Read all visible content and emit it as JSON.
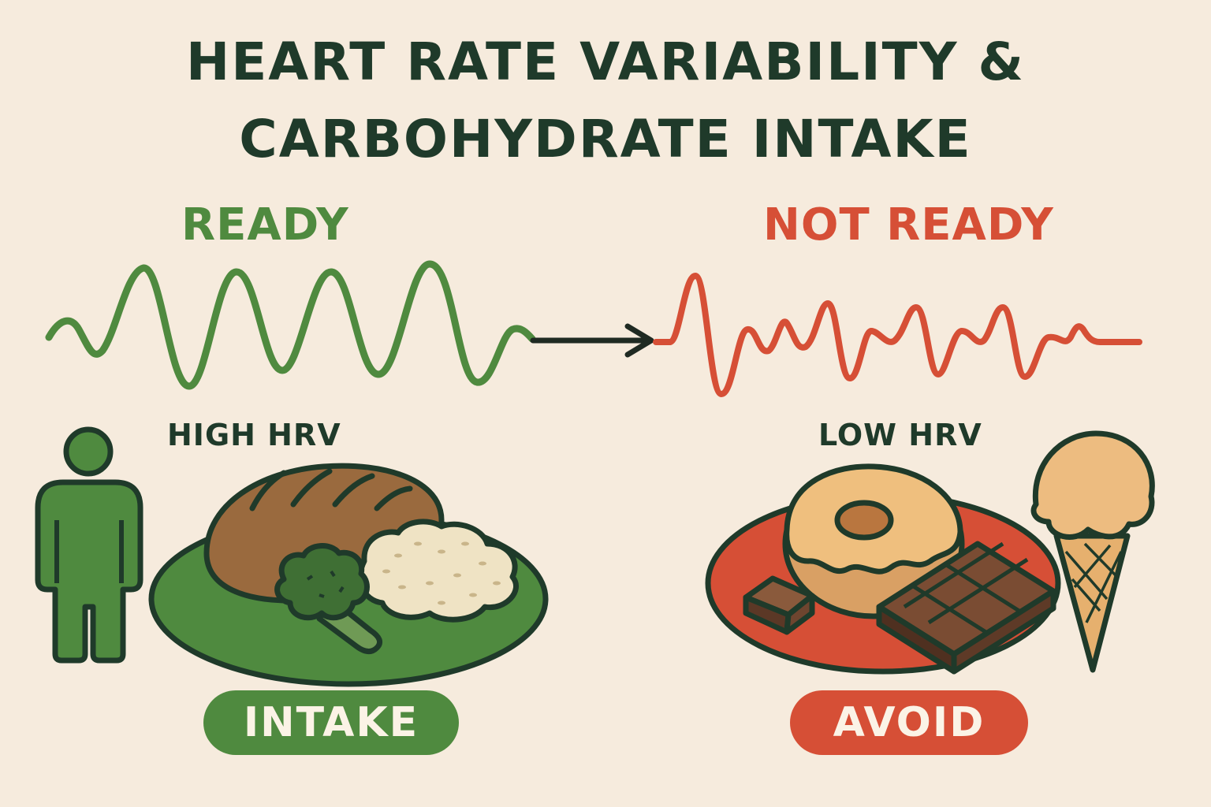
{
  "title": {
    "line1": "HEART RATE VARIABILITY &",
    "line2": "CARBOHYDRATE INTAKE"
  },
  "left": {
    "state": "READY",
    "hrv": "HIGH HRV",
    "action": "INTAKE",
    "color": "#4f8a3f"
  },
  "right": {
    "state": "NOT READY",
    "hrv": "LOW HRV",
    "action": "AVOID",
    "color": "#d64f36"
  },
  "colors": {
    "background": "#f6ebdd",
    "ink": "#1f3a2a"
  },
  "icons": [
    "person-icon",
    "bread-icon",
    "broccoli-icon",
    "rice-icon",
    "green-plate-icon",
    "donut-icon",
    "chocolate-bar-icon",
    "chocolate-piece-icon",
    "ice-cream-icon",
    "red-plate-icon",
    "arrow-icon"
  ]
}
